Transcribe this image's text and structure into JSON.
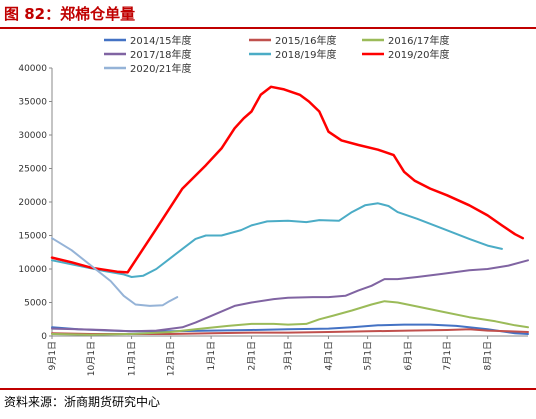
{
  "header": {
    "title": "图 82：郑棉仓单量",
    "source": "资料来源：浙商期货研究中心"
  },
  "chart_data": {
    "type": "line",
    "title": "",
    "xlabel": "",
    "ylabel": "",
    "ylim": [
      0,
      40000
    ],
    "yticks": [
      "0",
      "5000",
      "10000",
      "15000",
      "20000",
      "25000",
      "30000",
      "35000",
      "40000"
    ],
    "xlim": [
      0,
      365
    ],
    "x_unit": "day of season (Sep 1 = 0)",
    "xticks": [
      {
        "label": "9月1日",
        "x": 0
      },
      {
        "label": "10月1日",
        "x": 30
      },
      {
        "label": "11月1日",
        "x": 61
      },
      {
        "label": "12月1日",
        "x": 91
      },
      {
        "label": "1月1日",
        "x": 122
      },
      {
        "label": "2月1日",
        "x": 153
      },
      {
        "label": "3月1日",
        "x": 181
      },
      {
        "label": "4月1日",
        "x": 212
      },
      {
        "label": "5月1日",
        "x": 242
      },
      {
        "label": "6月1日",
        "x": 273
      },
      {
        "label": "7月1日",
        "x": 303
      },
      {
        "label": "8月1日",
        "x": 334
      }
    ],
    "grid": false,
    "legend": "top",
    "series": [
      {
        "name": "2014/15年度",
        "color": "#4472c4",
        "width": 2,
        "points": [
          [
            0,
            1300
          ],
          [
            20,
            1000
          ],
          [
            45,
            800
          ],
          [
            61,
            700
          ],
          [
            91,
            700
          ],
          [
            122,
            800
          ],
          [
            153,
            900
          ],
          [
            181,
            1000
          ],
          [
            212,
            1100
          ],
          [
            230,
            1300
          ],
          [
            250,
            1600
          ],
          [
            270,
            1700
          ],
          [
            290,
            1700
          ],
          [
            310,
            1500
          ],
          [
            334,
            1000
          ],
          [
            355,
            400
          ],
          [
            365,
            300
          ]
        ]
      },
      {
        "name": "2015/16年度",
        "color": "#c0504d",
        "width": 2,
        "points": [
          [
            0,
            400
          ],
          [
            30,
            300
          ],
          [
            61,
            300
          ],
          [
            91,
            300
          ],
          [
            122,
            400
          ],
          [
            153,
            500
          ],
          [
            181,
            500
          ],
          [
            212,
            600
          ],
          [
            242,
            700
          ],
          [
            273,
            800
          ],
          [
            303,
            900
          ],
          [
            320,
            1000
          ],
          [
            334,
            800
          ],
          [
            350,
            700
          ],
          [
            365,
            600
          ]
        ]
      },
      {
        "name": "2016/17年度",
        "color": "#9bbb59",
        "width": 2,
        "points": [
          [
            0,
            300
          ],
          [
            30,
            200
          ],
          [
            61,
            300
          ],
          [
            91,
            600
          ],
          [
            110,
            1000
          ],
          [
            135,
            1500
          ],
          [
            153,
            1800
          ],
          [
            170,
            1800
          ],
          [
            181,
            1700
          ],
          [
            195,
            1800
          ],
          [
            205,
            2500
          ],
          [
            215,
            3000
          ],
          [
            230,
            3800
          ],
          [
            245,
            4700
          ],
          [
            255,
            5200
          ],
          [
            265,
            5000
          ],
          [
            280,
            4400
          ],
          [
            300,
            3600
          ],
          [
            320,
            2800
          ],
          [
            340,
            2200
          ],
          [
            355,
            1600
          ],
          [
            365,
            1300
          ]
        ]
      },
      {
        "name": "2017/18年度",
        "color": "#8064a2",
        "width": 2,
        "points": [
          [
            0,
            1100
          ],
          [
            20,
            1000
          ],
          [
            40,
            900
          ],
          [
            61,
            700
          ],
          [
            80,
            800
          ],
          [
            100,
            1300
          ],
          [
            110,
            2000
          ],
          [
            122,
            3000
          ],
          [
            140,
            4500
          ],
          [
            153,
            5000
          ],
          [
            170,
            5500
          ],
          [
            181,
            5700
          ],
          [
            200,
            5800
          ],
          [
            212,
            5800
          ],
          [
            225,
            6000
          ],
          [
            235,
            6800
          ],
          [
            245,
            7500
          ],
          [
            255,
            8500
          ],
          [
            265,
            8500
          ],
          [
            280,
            8800
          ],
          [
            300,
            9300
          ],
          [
            320,
            9800
          ],
          [
            334,
            10000
          ],
          [
            350,
            10500
          ],
          [
            365,
            11300
          ]
        ]
      },
      {
        "name": "2018/19年度",
        "color": "#4bacc6",
        "width": 2,
        "points": [
          [
            0,
            11300
          ],
          [
            20,
            10500
          ],
          [
            40,
            9700
          ],
          [
            55,
            9200
          ],
          [
            61,
            8800
          ],
          [
            70,
            9000
          ],
          [
            80,
            10000
          ],
          [
            90,
            11500
          ],
          [
            100,
            13000
          ],
          [
            110,
            14500
          ],
          [
            118,
            15000
          ],
          [
            130,
            15000
          ],
          [
            145,
            15800
          ],
          [
            153,
            16500
          ],
          [
            165,
            17100
          ],
          [
            181,
            17200
          ],
          [
            195,
            17000
          ],
          [
            205,
            17300
          ],
          [
            220,
            17200
          ],
          [
            230,
            18500
          ],
          [
            240,
            19500
          ],
          [
            250,
            19800
          ],
          [
            258,
            19400
          ],
          [
            265,
            18500
          ],
          [
            280,
            17500
          ],
          [
            300,
            16000
          ],
          [
            320,
            14500
          ],
          [
            334,
            13500
          ],
          [
            345,
            13000
          ]
        ]
      },
      {
        "name": "2019/20年度",
        "color": "#ff0000",
        "width": 2.5,
        "points": [
          [
            0,
            11700
          ],
          [
            15,
            11000
          ],
          [
            30,
            10200
          ],
          [
            50,
            9600
          ],
          [
            58,
            9500
          ],
          [
            80,
            16000
          ],
          [
            100,
            22000
          ],
          [
            118,
            25500
          ],
          [
            130,
            28000
          ],
          [
            140,
            31000
          ],
          [
            147,
            32500
          ],
          [
            153,
            33500
          ],
          [
            160,
            36000
          ],
          [
            168,
            37200
          ],
          [
            178,
            36800
          ],
          [
            190,
            36000
          ],
          [
            197,
            35000
          ],
          [
            205,
            33500
          ],
          [
            212,
            30500
          ],
          [
            222,
            29200
          ],
          [
            235,
            28500
          ],
          [
            250,
            27800
          ],
          [
            262,
            27000
          ],
          [
            270,
            24500
          ],
          [
            278,
            23200
          ],
          [
            290,
            22000
          ],
          [
            303,
            21000
          ],
          [
            320,
            19500
          ],
          [
            334,
            18000
          ],
          [
            345,
            16500
          ],
          [
            355,
            15200
          ],
          [
            361,
            14600
          ]
        ]
      },
      {
        "name": "2020/21年度",
        "color": "#95b3d7",
        "width": 2,
        "points": [
          [
            0,
            14600
          ],
          [
            15,
            12800
          ],
          [
            30,
            10500
          ],
          [
            45,
            8200
          ],
          [
            55,
            6000
          ],
          [
            64,
            4700
          ],
          [
            75,
            4500
          ],
          [
            85,
            4600
          ],
          [
            90,
            5200
          ],
          [
            96,
            5800
          ]
        ]
      }
    ]
  }
}
